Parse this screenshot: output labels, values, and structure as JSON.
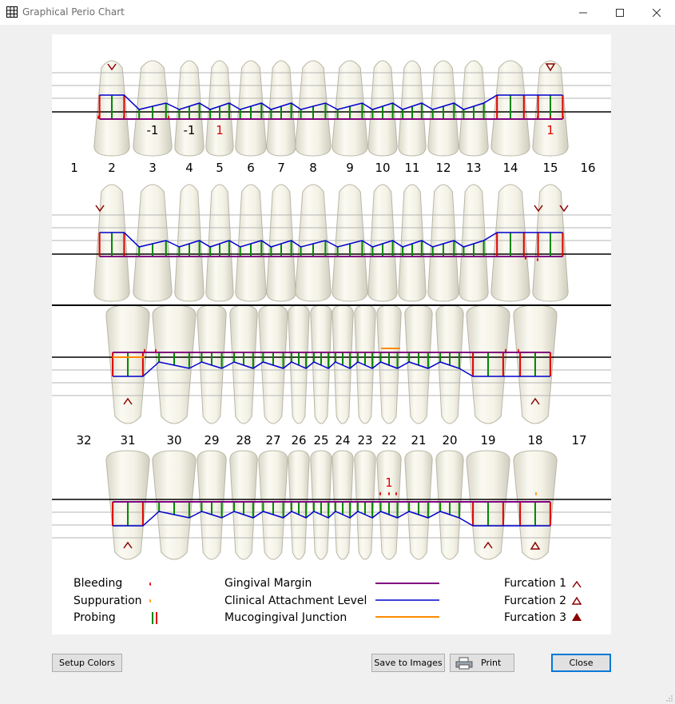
{
  "window": {
    "title": "Graphical Perio Chart"
  },
  "upper_numbers": [
    "1",
    "2",
    "3",
    "4",
    "5",
    "6",
    "7",
    "8",
    "9",
    "10",
    "11",
    "12",
    "13",
    "14",
    "15",
    "16"
  ],
  "lower_numbers": [
    "32",
    "31",
    "30",
    "29",
    "28",
    "27",
    "26",
    "25",
    "24",
    "23",
    "22",
    "21",
    "20",
    "19",
    "18",
    "17"
  ],
  "upper_annotations": [
    {
      "text": "-1",
      "color": "#000000"
    },
    {
      "text": "-1",
      "color": "#000000"
    },
    {
      "text": "1",
      "color": "#e00000"
    },
    {
      "text": "1",
      "color": "#e00000"
    }
  ],
  "lower_annotations": [
    {
      "text": "1",
      "color": "#e00000"
    }
  ],
  "legend": {
    "bleeding": "Bleeding",
    "suppuration": "Suppuration",
    "probing": "Probing",
    "gingival_margin": "Gingival Margin",
    "clinical_attachment_level": "Clinical Attachment Level",
    "mucogingival_junction": "Mucogingival Junction",
    "furcation1": "Furcation 1",
    "furcation2": "Furcation 2",
    "furcation3": "Furcation 3"
  },
  "colors": {
    "gingival_margin": "#800080",
    "clinical_attachment": "#0000cc",
    "mucogingival": "#ff8c00",
    "bleeding": "#e00000",
    "suppuration": "#ff9900",
    "probing_ok": "#008800",
    "probing_deep": "#e00000",
    "furcation": "#8b0000"
  },
  "buttons": {
    "setup_colors": "Setup Colors",
    "save_to_images": "Save to Images",
    "print": "Print",
    "close": "Close"
  }
}
